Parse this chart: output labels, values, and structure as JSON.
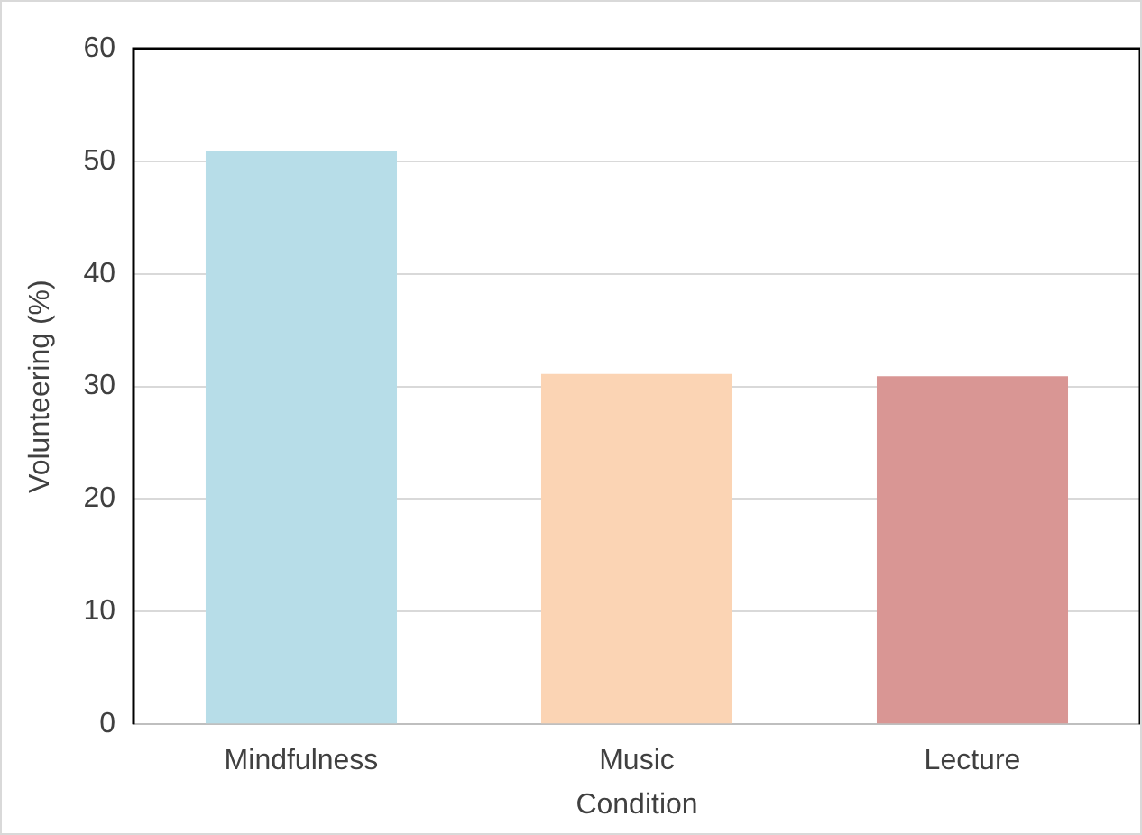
{
  "chart_data": {
    "type": "bar",
    "xlabel": "Condition",
    "ylabel": "Volunteering (%)",
    "categories": [
      "Mindfulness",
      "Music",
      "Lecture"
    ],
    "values": [
      50.9,
      31.1,
      30.9
    ],
    "colors": [
      "#b7dde8",
      "#fbd4b4",
      "#d99694"
    ],
    "ylim": [
      0,
      60
    ],
    "yticks": [
      0,
      10,
      20,
      30,
      40,
      50,
      60
    ],
    "grid": "y"
  }
}
